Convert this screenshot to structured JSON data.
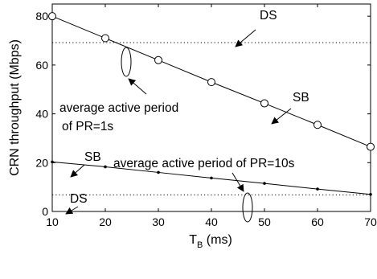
{
  "chart_data": {
    "type": "line",
    "xlabel": "T",
    "xlabel_sub": "B",
    "xlabel_unit": " (ms)",
    "ylabel": "CRN throughput (Mbps)",
    "xlim": [
      10,
      70
    ],
    "ylim": [
      0,
      85
    ],
    "xticks": [
      10,
      20,
      30,
      40,
      50,
      60,
      70
    ],
    "yticks": [
      0,
      20,
      40,
      60,
      80
    ],
    "grid": false,
    "series": [
      {
        "name": "SB",
        "style": "solid",
        "marker": "circle",
        "x": [
          10,
          20,
          30,
          40,
          50,
          60,
          70
        ],
        "y": [
          80,
          71,
          62,
          53,
          44.3,
          35.5,
          26.5
        ]
      },
      {
        "name": "DS",
        "style": "dotted",
        "marker": "none",
        "x": [
          10,
          70
        ],
        "y": [
          69.2,
          69.2
        ]
      },
      {
        "name": "SB",
        "style": "solid",
        "marker": "dot",
        "x": [
          10,
          20,
          30,
          40,
          50,
          60,
          70
        ],
        "y": [
          20.3,
          18.3,
          16,
          13.7,
          11.5,
          9.2,
          7
        ]
      },
      {
        "name": "DS",
        "style": "dotted",
        "marker": "none",
        "x": [
          10,
          70
        ],
        "y": [
          6.8,
          6.8
        ]
      }
    ],
    "annotations": [
      {
        "text": "DS"
      },
      {
        "text": "SB"
      },
      {
        "text": "average active period"
      },
      {
        "text": "of PR=1s"
      },
      {
        "text": "SB"
      },
      {
        "text": "average active period of PR=10s"
      },
      {
        "text": "DS"
      }
    ]
  }
}
